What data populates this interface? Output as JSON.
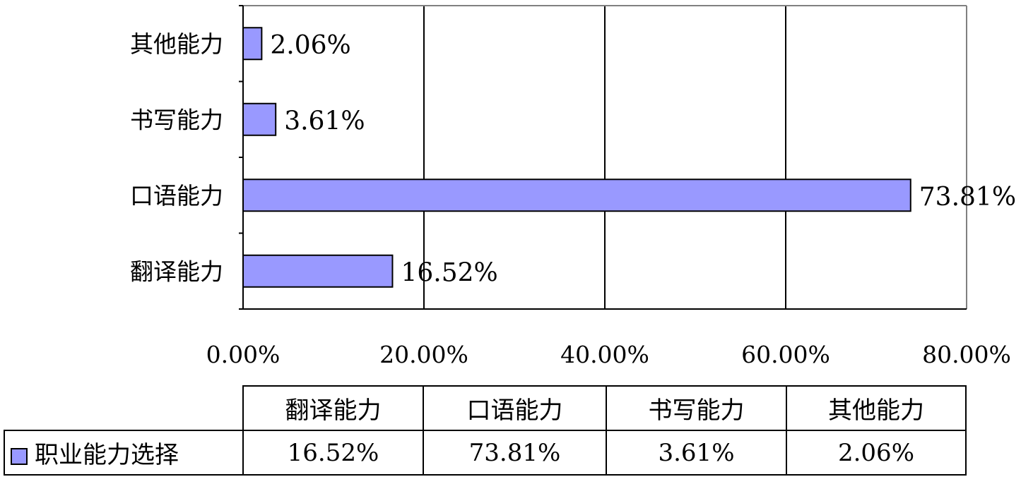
{
  "chart_data": {
    "type": "bar",
    "orientation": "horizontal",
    "categories": [
      "翻译能力",
      "口语能力",
      "书写能力",
      "其他能力"
    ],
    "series": [
      {
        "name": "职业能力选择",
        "values": [
          16.52,
          73.81,
          3.61,
          2.06
        ]
      }
    ],
    "data_labels": [
      "16.52%",
      "73.81%",
      "3.61%",
      "2.06%"
    ],
    "x_ticks": [
      "0.00%",
      "20.00%",
      "40.00%",
      "60.00%",
      "80.00%"
    ],
    "xlim": [
      0,
      80
    ],
    "grid": true,
    "legend": "data table",
    "colors": {
      "bar_fill": "#9999ff",
      "bar_stroke": "#000000"
    }
  },
  "data_table": {
    "header": [
      "翻译能力",
      "口语能力",
      "书写能力",
      "其他能力"
    ],
    "series_label": "职业能力选择",
    "values": [
      "16.52%",
      "73.81%",
      "3.61%",
      "2.06%"
    ]
  }
}
